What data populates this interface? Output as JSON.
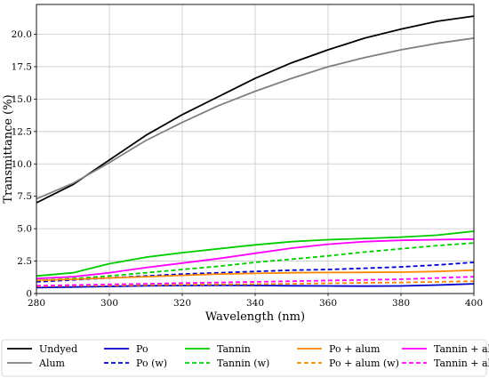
{
  "chart_data": {
    "type": "line",
    "xlabel": "Wavelength (nm)",
    "ylabel": "Transmittance (%)",
    "xlim": [
      280,
      400
    ],
    "ylim": [
      0,
      22.3
    ],
    "x_ticks": [
      "280",
      "300",
      "320",
      "340",
      "360",
      "380",
      "400"
    ],
    "y_ticks": [
      "0",
      "2.5",
      "5.0",
      "7.5",
      "10.0",
      "12.5",
      "15.0",
      "17.5",
      "20.0"
    ],
    "grid": true,
    "legend_position": "bottom",
    "x": [
      280,
      290,
      300,
      310,
      320,
      330,
      340,
      350,
      360,
      370,
      380,
      390,
      400
    ],
    "series": [
      {
        "name": "Undyed",
        "color": "#000000",
        "dashed": false,
        "values": [
          7.0,
          8.4,
          10.3,
          12.2,
          13.8,
          15.2,
          16.6,
          17.8,
          18.8,
          19.7,
          20.4,
          21.0,
          21.4
        ]
      },
      {
        "name": "Alum",
        "color": "#808080",
        "dashed": false,
        "values": [
          7.3,
          8.5,
          10.1,
          11.8,
          13.2,
          14.5,
          15.6,
          16.6,
          17.5,
          18.2,
          18.8,
          19.3,
          19.7
        ]
      },
      {
        "name": "Po",
        "color": "#0000cd",
        "dashed": false,
        "values": [
          0.45,
          0.5,
          0.55,
          0.6,
          0.62,
          0.63,
          0.62,
          0.6,
          0.58,
          0.57,
          0.58,
          0.65,
          0.75
        ]
      },
      {
        "name": "Po (w)",
        "color": "#0000cd",
        "dashed": true,
        "values": [
          0.9,
          1.05,
          1.2,
          1.35,
          1.5,
          1.6,
          1.7,
          1.8,
          1.85,
          1.95,
          2.05,
          2.2,
          2.4
        ]
      },
      {
        "name": "Tannin",
        "color": "#00cc00",
        "dashed": false,
        "values": [
          1.35,
          1.6,
          2.3,
          2.8,
          3.15,
          3.45,
          3.75,
          4.0,
          4.15,
          4.25,
          4.35,
          4.5,
          4.8
        ]
      },
      {
        "name": "Tannin (w)",
        "color": "#00cc00",
        "dashed": true,
        "values": [
          1.0,
          1.15,
          1.35,
          1.6,
          1.85,
          2.1,
          2.4,
          2.65,
          2.9,
          3.2,
          3.45,
          3.7,
          3.9
        ]
      },
      {
        "name": "Po + alum",
        "color": "#ff8800",
        "dashed": false,
        "values": [
          1.0,
          1.1,
          1.2,
          1.3,
          1.4,
          1.5,
          1.55,
          1.6,
          1.62,
          1.63,
          1.65,
          1.7,
          1.8
        ]
      },
      {
        "name": "Po + alum (w)",
        "color": "#ff8800",
        "dashed": true,
        "values": [
          0.55,
          0.6,
          0.62,
          0.65,
          0.68,
          0.7,
          0.72,
          0.75,
          0.78,
          0.82,
          0.85,
          0.9,
          0.95
        ]
      },
      {
        "name": "Tannin + alum",
        "color": "#ff00ff",
        "dashed": false,
        "values": [
          1.15,
          1.3,
          1.6,
          2.0,
          2.35,
          2.7,
          3.1,
          3.5,
          3.8,
          4.0,
          4.1,
          4.15,
          4.2
        ]
      },
      {
        "name": "Tannin + alum (w)",
        "color": "#ff00ff",
        "dashed": true,
        "values": [
          0.6,
          0.65,
          0.7,
          0.75,
          0.8,
          0.85,
          0.9,
          0.95,
          1.0,
          1.05,
          1.1,
          1.2,
          1.3
        ]
      }
    ]
  }
}
